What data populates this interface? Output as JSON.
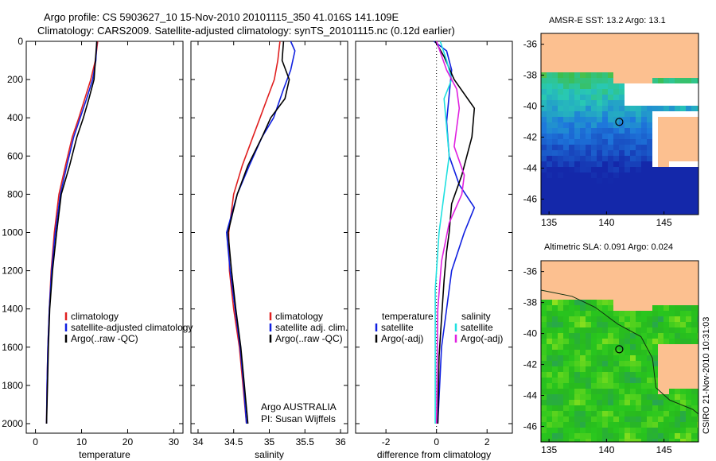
{
  "header": {
    "line1": "Argo profile: CS 5903627_10 15-Nov-2010 20101115_350 41.016S 141.109E",
    "line2": "Climatology: CARS2009. Satellite-adjusted climatology: synTS_20101115.nc (0.12d earlier)"
  },
  "side_info": "CSIRO 21-Nov-2010 10:31:03",
  "colors": {
    "climatology": "#e02020",
    "satellite": "#1020e0",
    "argo": "#000000",
    "sat_temp_diff": "#20e0e0",
    "argo_sal_diff": "#e020e0",
    "land": "#fcc090",
    "no_data": "#ffffff"
  },
  "panels": {
    "temperature": {
      "xlabel": "temperature",
      "legend": [
        "climatology",
        "satellite-adjusted climatology",
        "Argo(..raw -QC)"
      ]
    },
    "salinity": {
      "xlabel": "salinity",
      "legend": [
        "climatology",
        "satellite adj. clim.",
        "Argo(..raw -QC)"
      ],
      "note1": "Argo AUSTRALIA",
      "note2": "PI: Susan Wijffels"
    },
    "difference": {
      "xlabel": "difference from climatology",
      "legend_head_temp": "temperature",
      "legend_head_sal": "salinity",
      "legend_temp": [
        "satellite",
        "Argo(-adj)"
      ],
      "legend_sal": [
        "satellite",
        "Argo(-adj)"
      ]
    }
  },
  "maps": {
    "sst": {
      "title": "AMSR-E SST: 13.2 Argo: 13.1"
    },
    "sla": {
      "title": "Altimetric SLA: 0.091 Argo: 0.024"
    },
    "xticks": [
      "135",
      "140",
      "145"
    ],
    "yticks": [
      "-36",
      "-38",
      "-40",
      "-42",
      "-44",
      "-46"
    ],
    "float_position": {
      "lon": 141.109,
      "lat": -41.016
    }
  },
  "chart_data": [
    {
      "type": "line",
      "panel": "temperature",
      "xlabel": "temperature",
      "ylabel": "",
      "xlim": [
        -2,
        32
      ],
      "ylim": [
        2050,
        0
      ],
      "y_reversed": true,
      "xticks": [
        0,
        10,
        20,
        30
      ],
      "yticks": [
        0,
        200,
        400,
        600,
        800,
        1000,
        1200,
        1400,
        1600,
        1800,
        2000
      ],
      "series": [
        {
          "name": "climatology",
          "color": "#e02020",
          "x": [
            13.5,
            13.0,
            12.0,
            10.7,
            9.4,
            8.0,
            6.5,
            5.1,
            4.1,
            3.4,
            3.0,
            2.7,
            2.5,
            2.4
          ],
          "y": [
            0,
            100,
            200,
            300,
            400,
            500,
            650,
            800,
            1000,
            1200,
            1400,
            1600,
            1800,
            2000
          ]
        },
        {
          "name": "satellite-adjusted climatology",
          "color": "#1020e0",
          "x": [
            13.3,
            13.1,
            12.4,
            11.1,
            9.7,
            8.3,
            6.8,
            5.4,
            4.3,
            3.5,
            3.0,
            2.7,
            2.5,
            2.4
          ],
          "y": [
            0,
            100,
            200,
            300,
            400,
            500,
            650,
            800,
            1000,
            1200,
            1400,
            1600,
            1800,
            2000
          ]
        },
        {
          "name": "Argo(..raw -QC)",
          "color": "#000000",
          "x": [
            13.3,
            13.0,
            12.7,
            11.6,
            10.4,
            9.0,
            7.4,
            5.6,
            4.6,
            3.7,
            3.1,
            2.8,
            2.6,
            2.4
          ],
          "y": [
            0,
            100,
            200,
            300,
            400,
            500,
            650,
            800,
            1000,
            1200,
            1400,
            1600,
            1800,
            2000
          ]
        }
      ]
    },
    {
      "type": "line",
      "panel": "salinity",
      "xlabel": "salinity",
      "ylabel": "",
      "xlim": [
        33.9,
        36.1
      ],
      "ylim": [
        2050,
        0
      ],
      "y_reversed": true,
      "xticks": [
        34,
        34.5,
        35,
        35.5,
        36
      ],
      "series": [
        {
          "name": "climatology",
          "color": "#e02020",
          "x": [
            35.15,
            35.12,
            35.07,
            34.97,
            34.87,
            34.77,
            34.62,
            34.5,
            34.43,
            34.44,
            34.5,
            34.58,
            34.63,
            34.68
          ],
          "y": [
            0,
            100,
            200,
            300,
            400,
            500,
            650,
            800,
            1000,
            1200,
            1400,
            1600,
            1800,
            2000
          ]
        },
        {
          "name": "satellite adj. clim.",
          "color": "#1020e0",
          "x": [
            35.3,
            35.36,
            35.3,
            35.2,
            35.06,
            34.9,
            34.72,
            34.55,
            34.4,
            34.45,
            34.52,
            34.59,
            34.64,
            34.68
          ],
          "y": [
            0,
            50,
            150,
            250,
            400,
            500,
            650,
            800,
            1000,
            1200,
            1400,
            1600,
            1800,
            2000
          ]
        },
        {
          "name": "Argo(..raw -QC)",
          "color": "#000000",
          "x": [
            35.2,
            35.18,
            35.28,
            35.22,
            35.02,
            34.9,
            34.7,
            34.55,
            34.42,
            34.47,
            34.53,
            34.6,
            34.65,
            34.7
          ],
          "y": [
            0,
            100,
            200,
            300,
            400,
            500,
            650,
            800,
            1000,
            1200,
            1400,
            1600,
            1800,
            2000
          ]
        }
      ]
    },
    {
      "type": "line",
      "panel": "difference",
      "xlabel": "difference from climatology",
      "ylabel": "",
      "xlim": [
        -3.2,
        3
      ],
      "ylim": [
        2050,
        0
      ],
      "y_reversed": true,
      "xticks": [
        -2,
        0,
        2
      ],
      "series": [
        {
          "name": "temperature satellite",
          "color": "#1020e0",
          "x": [
            -0.1,
            0.4,
            0.6,
            0.5,
            0.4,
            0.5,
            0.9,
            1.5,
            1.1,
            0.6,
            0.4,
            0.2,
            0.05
          ],
          "y": [
            0,
            50,
            150,
            280,
            420,
            600,
            750,
            870,
            1000,
            1200,
            1400,
            1600,
            2000
          ]
        },
        {
          "name": "temperature Argo(-adj)",
          "color": "#000000",
          "x": [
            -0.05,
            0.3,
            0.7,
            1.5,
            1.4,
            1.0,
            0.6,
            0.5,
            0.4,
            0.3,
            0.2,
            0.1,
            0.05
          ],
          "y": [
            0,
            80,
            200,
            350,
            500,
            700,
            850,
            1000,
            1100,
            1250,
            1450,
            1650,
            2000
          ]
        },
        {
          "name": "salinity satellite",
          "color": "#20e0e0",
          "x": [
            0.15,
            0.4,
            0.6,
            0.3,
            0.4,
            0.5,
            0.3,
            0.1,
            -0.05,
            -0.05,
            -0.05
          ],
          "y": [
            0,
            100,
            200,
            300,
            450,
            600,
            800,
            1000,
            1300,
            1600,
            2000
          ]
        },
        {
          "name": "salinity Argo(-adj)",
          "color": "#e020e0",
          "x": [
            0.0,
            0.4,
            0.8,
            0.9,
            0.7,
            1.1,
            1.0,
            0.5,
            0.2,
            0.05,
            0.0
          ],
          "y": [
            0,
            150,
            250,
            350,
            550,
            700,
            800,
            950,
            1150,
            1400,
            2000
          ]
        }
      ]
    }
  ]
}
